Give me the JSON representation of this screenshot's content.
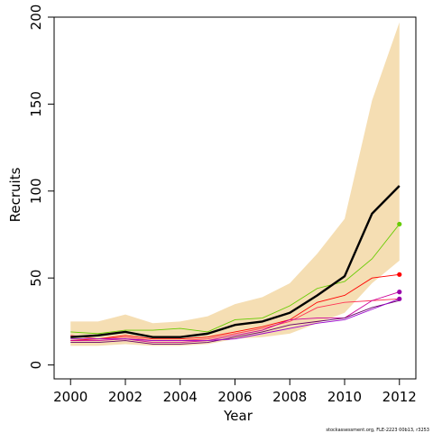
{
  "chart_data": {
    "type": "line",
    "xlabel": "Year",
    "ylabel": "Recruits",
    "xlim": [
      1999.4,
      2012.6
    ],
    "ylim": [
      -8,
      200
    ],
    "x_ticks": [
      2000,
      2002,
      2004,
      2006,
      2008,
      2010,
      2012
    ],
    "y_ticks": [
      0,
      50,
      100,
      150,
      200
    ],
    "grid": false,
    "legend": "none",
    "years": [
      2000,
      2001,
      2002,
      2003,
      2004,
      2005,
      2006,
      2007,
      2008,
      2009,
      2010,
      2011,
      2012
    ],
    "band": {
      "color": "#f5deb3",
      "lower": [
        11,
        11,
        12,
        11,
        11,
        12,
        15,
        16,
        18,
        24,
        30,
        47,
        60
      ],
      "upper": [
        25,
        25,
        29,
        24,
        25,
        28,
        35,
        39,
        47,
        64,
        84,
        152,
        197
      ]
    },
    "median": {
      "color": "#000000",
      "values": [
        16,
        17,
        19,
        16,
        16,
        18,
        23,
        25,
        30,
        40,
        51,
        87,
        103
      ]
    },
    "series": [
      {
        "color": "#66cc00",
        "values": [
          19,
          18,
          20,
          20,
          21,
          19,
          26,
          27,
          34,
          44,
          48,
          61,
          81
        ]
      },
      {
        "color": "#ff0000",
        "values": [
          14,
          15,
          17,
          15,
          15,
          16,
          19,
          22,
          26,
          36,
          40,
          50,
          52
        ]
      },
      {
        "color": "#ff3355",
        "values": [
          17,
          15,
          16,
          14,
          14,
          15,
          18,
          21,
          25,
          33,
          36,
          37,
          38
        ]
      },
      {
        "color": "#cc0099",
        "values": [
          14,
          14,
          15,
          13,
          13,
          14,
          17,
          20,
          26,
          27,
          27,
          37,
          42
        ]
      },
      {
        "color": "#660066",
        "values": [
          13,
          13,
          14,
          12,
          12,
          13,
          16,
          19,
          23,
          25,
          27,
          33,
          37
        ]
      },
      {
        "color": "#9900cc",
        "values": [
          15,
          15,
          15,
          14,
          14,
          14,
          15,
          18,
          21,
          24,
          26,
          32,
          38
        ]
      }
    ],
    "endpoint_colors": [
      "#66cc00",
      "#ff0000",
      "#9900aa",
      "#9900aa"
    ],
    "endpoint_values": [
      81,
      52,
      42,
      38
    ]
  },
  "footnote": "stockassessment.org, FLE-2223 00b13, r3253"
}
